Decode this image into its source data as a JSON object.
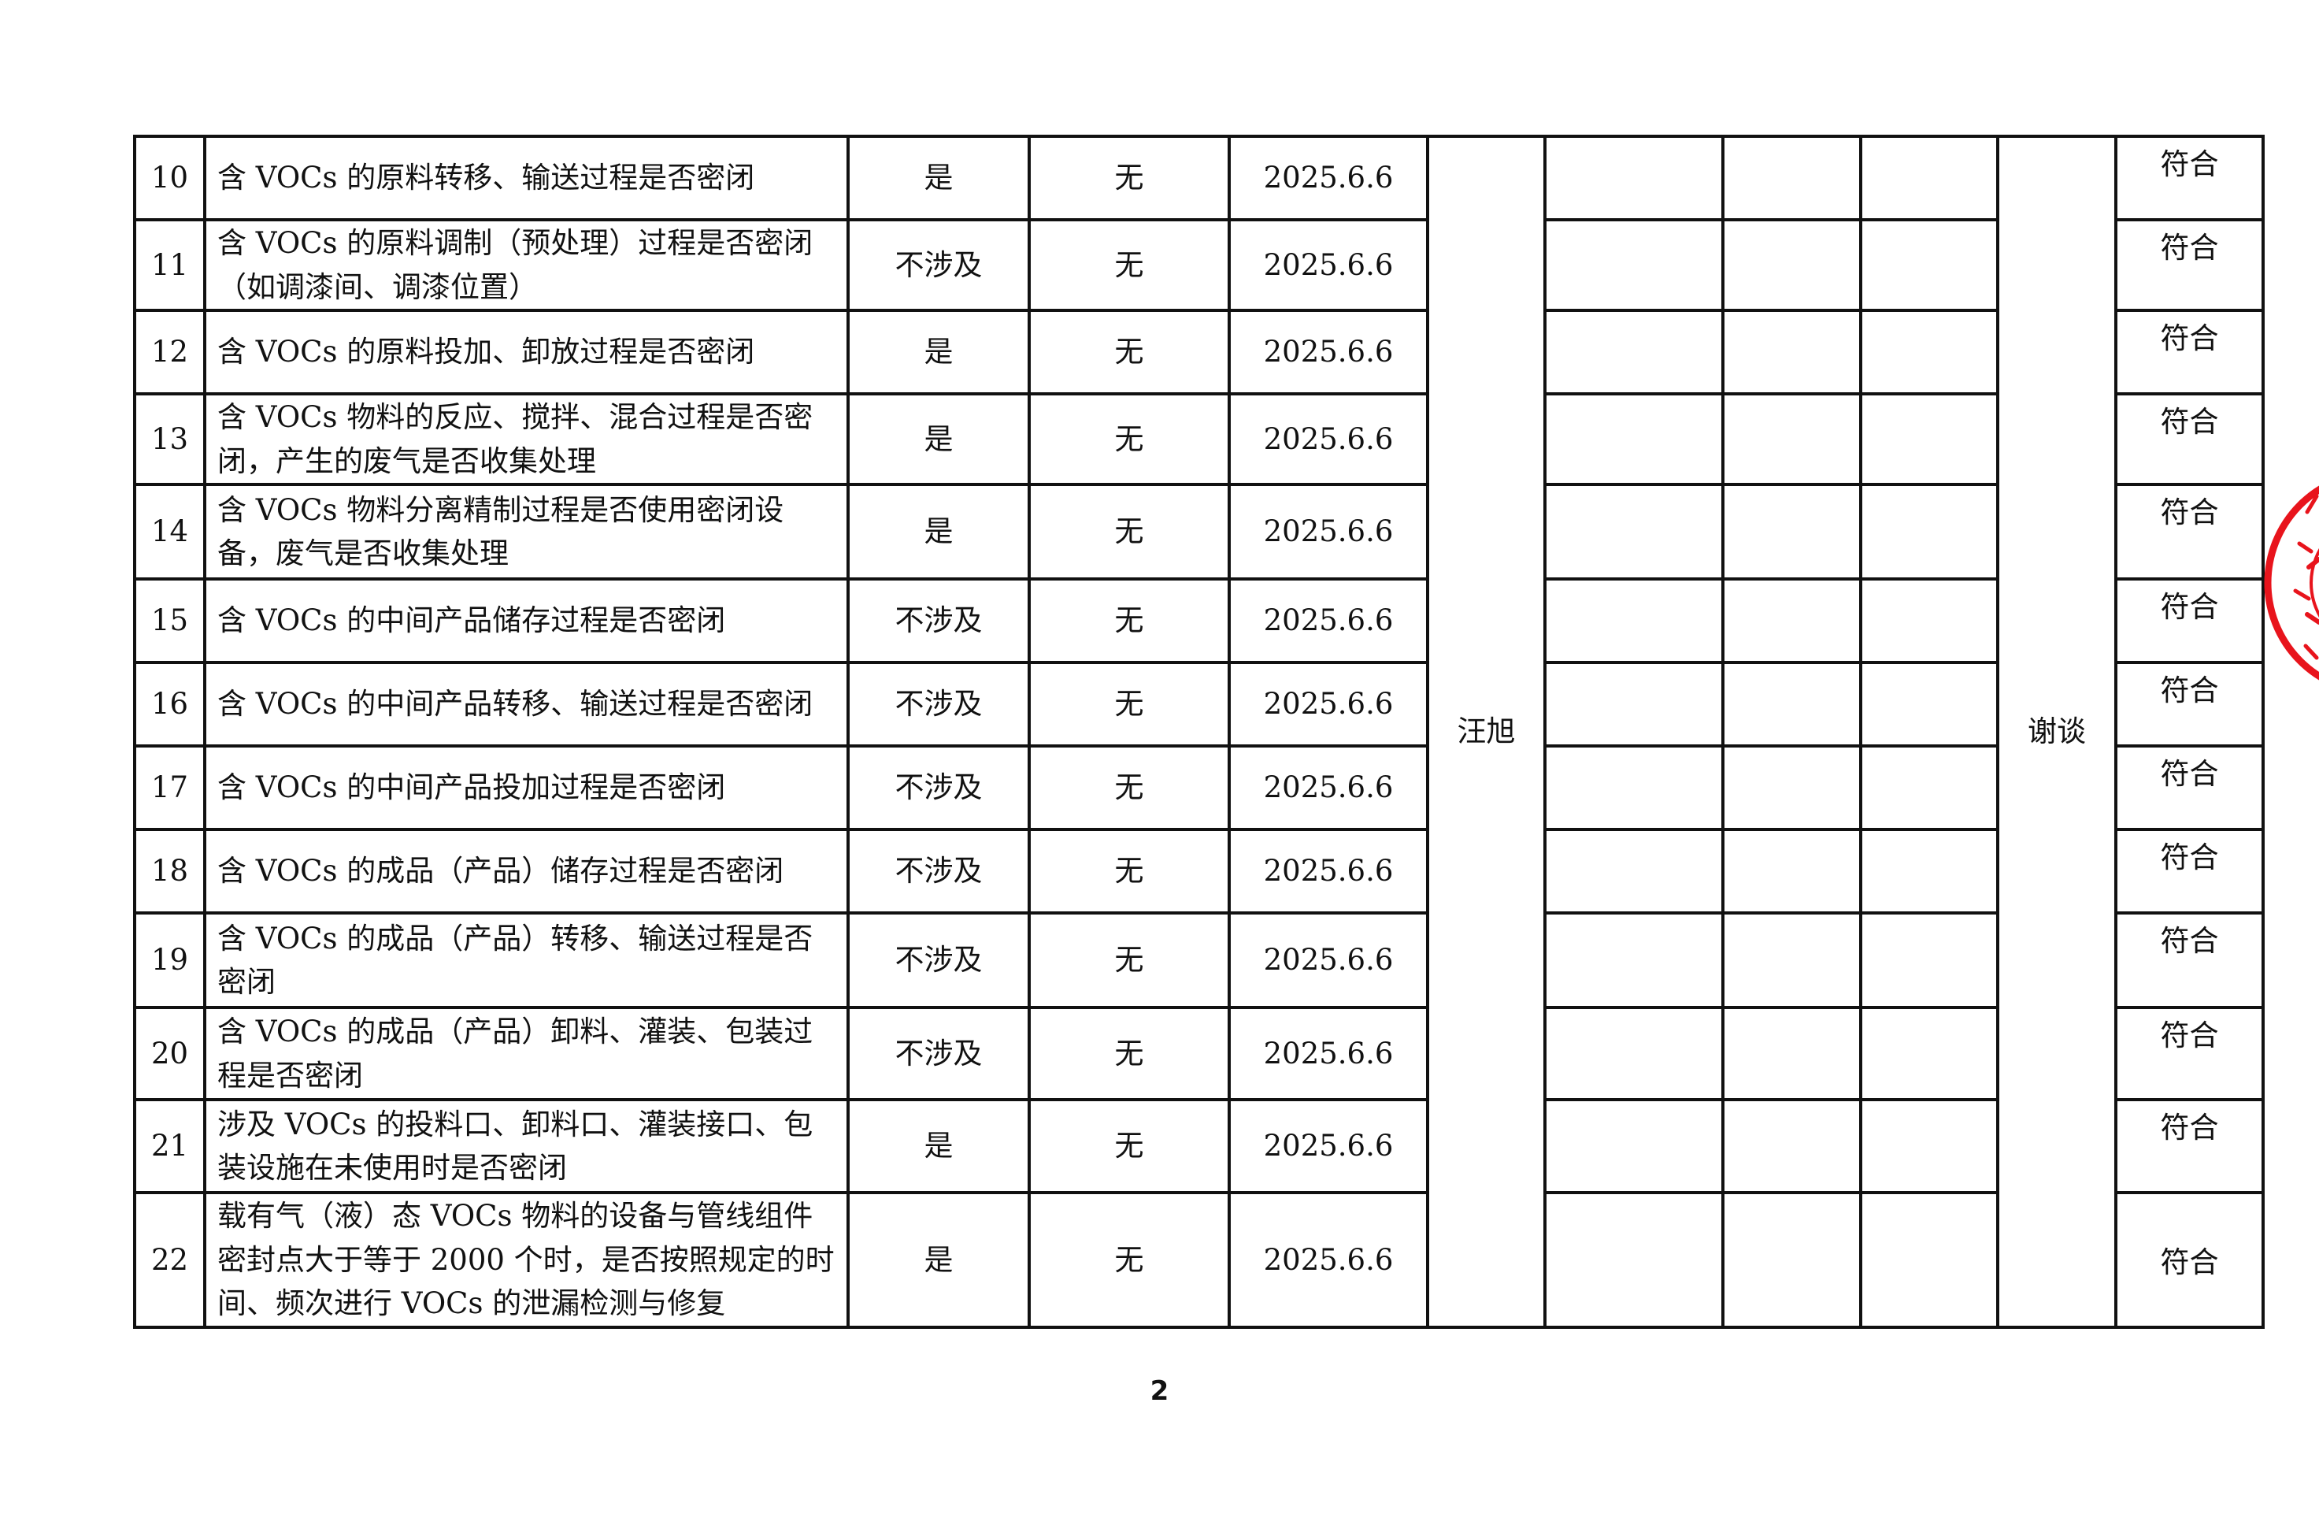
{
  "rows": [
    {
      "no": "10",
      "item": "含 VOCs 的原料转移、输送过程是否密闭",
      "status": "是",
      "issue": "无",
      "date": "2025.6.6",
      "result": "符合"
    },
    {
      "no": "11",
      "item": "含 VOCs 的原料调制（预处理）过程是否密闭（如调漆间、调漆位置）",
      "status": "不涉及",
      "issue": "无",
      "date": "2025.6.6",
      "result": "符合"
    },
    {
      "no": "12",
      "item": "含 VOCs 的原料投加、卸放过程是否密闭",
      "status": "是",
      "issue": "无",
      "date": "2025.6.6",
      "result": "符合"
    },
    {
      "no": "13",
      "item": "含 VOCs 物料的反应、搅拌、混合过程是否密闭，产生的废气是否收集处理",
      "status": "是",
      "issue": "无",
      "date": "2025.6.6",
      "result": "符合"
    },
    {
      "no": "14",
      "item": "含 VOCs 物料分离精制过程是否使用密闭设备，废气是否收集处理",
      "status": "是",
      "issue": "无",
      "date": "2025.6.6",
      "result": "符合"
    },
    {
      "no": "15",
      "item": "含 VOCs 的中间产品储存过程是否密闭",
      "status": "不涉及",
      "issue": "无",
      "date": "2025.6.6",
      "result": "符合"
    },
    {
      "no": "16",
      "item": "含 VOCs 的中间产品转移、输送过程是否密闭",
      "status": "不涉及",
      "issue": "无",
      "date": "2025.6.6",
      "result": "符合"
    },
    {
      "no": "17",
      "item": "含 VOCs 的中间产品投加过程是否密闭",
      "status": "不涉及",
      "issue": "无",
      "date": "2025.6.6",
      "result": "符合"
    },
    {
      "no": "18",
      "item": "含 VOCs 的成品（产品）储存过程是否密闭",
      "status": "不涉及",
      "issue": "无",
      "date": "2025.6.6",
      "result": "符合"
    },
    {
      "no": "19",
      "item": "含 VOCs 的成品（产品）转移、输送过程是否密闭",
      "status": "不涉及",
      "issue": "无",
      "date": "2025.6.6",
      "result": "符合"
    },
    {
      "no": "20",
      "item": "含 VOCs 的成品（产品）卸料、灌装、包装过程是否密闭",
      "status": "不涉及",
      "issue": "无",
      "date": "2025.6.6",
      "result": "符合"
    },
    {
      "no": "21",
      "item": "涉及 VOCs 的投料口、卸料口、灌装接口、包装设施在未使用时是否密闭",
      "status": "是",
      "issue": "无",
      "date": "2025.6.6",
      "result": "符合"
    },
    {
      "no": "22",
      "item": "载有气（液）态 VOCs 物料的设备与管线组件密封点大于等于 2000 个时，是否按照规定的时间、频次进行 VOCs 的泄漏检测与修复",
      "status": "是",
      "issue": "无",
      "date": "2025.6.6",
      "result": "符合"
    }
  ],
  "inspector": "汪旭",
  "method": "谢谈",
  "page_number": "2",
  "stamp_color": "#e8141c"
}
